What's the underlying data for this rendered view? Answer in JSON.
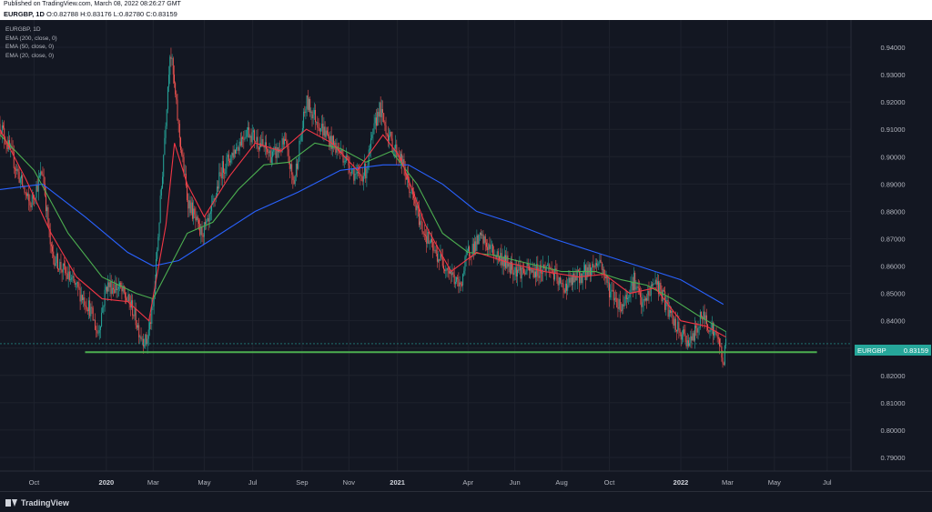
{
  "header": {
    "published": "Published on TradingView.com, March 08, 2022 08:26:27 GMT",
    "symbol": "EURGBP, 1D",
    "ohlc": "O:0.82788 H:0.83176 L:0.82780 C:0.83159"
  },
  "legend": {
    "symbol": "EURGBP, 1D",
    "items": [
      "EMA (200, close, 0)",
      "EMA (50, close, 0)",
      "EMA (20, close, 0)"
    ]
  },
  "price_tag": {
    "symbol": "EURGBP",
    "value": "0.83159"
  },
  "brand": "TradingView",
  "colors": {
    "background": "#131722",
    "up": "#26a69a",
    "down": "#ef5350",
    "ema200": "#2962ff",
    "ema50": "#4caf50",
    "ema20": "#f23645",
    "support": "#4caf50"
  },
  "chart_data": {
    "type": "line",
    "ylim": [
      0.785,
      0.95
    ],
    "yticks": [
      "0.94000",
      "0.93000",
      "0.92000",
      "0.91000",
      "0.90000",
      "0.89000",
      "0.88000",
      "0.87000",
      "0.86000",
      "0.85000",
      "0.84000",
      "0.83000",
      "0.82000",
      "0.81000",
      "0.80000",
      "0.79000"
    ],
    "xticks": [
      {
        "label": "Oct",
        "t": 0.04,
        "year": false
      },
      {
        "label": "2020",
        "t": 0.125,
        "year": true
      },
      {
        "label": "Mar",
        "t": 0.18,
        "year": false
      },
      {
        "label": "May",
        "t": 0.24,
        "year": false
      },
      {
        "label": "Jul",
        "t": 0.297,
        "year": false
      },
      {
        "label": "Sep",
        "t": 0.355,
        "year": false
      },
      {
        "label": "Nov",
        "t": 0.41,
        "year": false
      },
      {
        "label": "2021",
        "t": 0.467,
        "year": true
      },
      {
        "label": "Apr",
        "t": 0.55,
        "year": false
      },
      {
        "label": "Jun",
        "t": 0.605,
        "year": false
      },
      {
        "label": "Aug",
        "t": 0.66,
        "year": false
      },
      {
        "label": "Oct",
        "t": 0.716,
        "year": false
      },
      {
        "label": "2022",
        "t": 0.8,
        "year": true
      },
      {
        "label": "Mar",
        "t": 0.855,
        "year": false
      },
      {
        "label": "May",
        "t": 0.91,
        "year": false
      },
      {
        "label": "Jul",
        "t": 0.972,
        "year": false
      }
    ],
    "price_path": [
      [
        0.0,
        0.912
      ],
      [
        0.02,
        0.895
      ],
      [
        0.035,
        0.882
      ],
      [
        0.05,
        0.895
      ],
      [
        0.06,
        0.865
      ],
      [
        0.075,
        0.858
      ],
      [
        0.09,
        0.852
      ],
      [
        0.105,
        0.845
      ],
      [
        0.115,
        0.835
      ],
      [
        0.125,
        0.853
      ],
      [
        0.14,
        0.852
      ],
      [
        0.155,
        0.845
      ],
      [
        0.165,
        0.835
      ],
      [
        0.172,
        0.832
      ],
      [
        0.18,
        0.845
      ],
      [
        0.19,
        0.89
      ],
      [
        0.2,
        0.94
      ],
      [
        0.21,
        0.91
      ],
      [
        0.22,
        0.885
      ],
      [
        0.235,
        0.872
      ],
      [
        0.245,
        0.875
      ],
      [
        0.26,
        0.895
      ],
      [
        0.275,
        0.902
      ],
      [
        0.29,
        0.91
      ],
      [
        0.305,
        0.905
      ],
      [
        0.32,
        0.9
      ],
      [
        0.335,
        0.905
      ],
      [
        0.345,
        0.89
      ],
      [
        0.36,
        0.92
      ],
      [
        0.375,
        0.912
      ],
      [
        0.39,
        0.905
      ],
      [
        0.405,
        0.9
      ],
      [
        0.42,
        0.892
      ],
      [
        0.43,
        0.895
      ],
      [
        0.445,
        0.918
      ],
      [
        0.46,
        0.905
      ],
      [
        0.47,
        0.9
      ],
      [
        0.48,
        0.89
      ],
      [
        0.495,
        0.875
      ],
      [
        0.51,
        0.865
      ],
      [
        0.525,
        0.86
      ],
      [
        0.54,
        0.852
      ],
      [
        0.55,
        0.865
      ],
      [
        0.565,
        0.87
      ],
      [
        0.58,
        0.865
      ],
      [
        0.6,
        0.86
      ],
      [
        0.615,
        0.858
      ],
      [
        0.63,
        0.858
      ],
      [
        0.645,
        0.86
      ],
      [
        0.66,
        0.852
      ],
      [
        0.675,
        0.855
      ],
      [
        0.69,
        0.858
      ],
      [
        0.705,
        0.862
      ],
      [
        0.715,
        0.852
      ],
      [
        0.73,
        0.845
      ],
      [
        0.745,
        0.855
      ],
      [
        0.755,
        0.845
      ],
      [
        0.77,
        0.855
      ],
      [
        0.78,
        0.848
      ],
      [
        0.79,
        0.84
      ],
      [
        0.8,
        0.835
      ],
      [
        0.812,
        0.832
      ],
      [
        0.825,
        0.842
      ],
      [
        0.835,
        0.838
      ],
      [
        0.845,
        0.832
      ],
      [
        0.85,
        0.825
      ],
      [
        0.853,
        0.8316
      ]
    ],
    "ema20": [
      [
        0.0,
        0.91
      ],
      [
        0.03,
        0.892
      ],
      [
        0.06,
        0.872
      ],
      [
        0.09,
        0.856
      ],
      [
        0.12,
        0.848
      ],
      [
        0.15,
        0.847
      ],
      [
        0.175,
        0.84
      ],
      [
        0.195,
        0.875
      ],
      [
        0.205,
        0.905
      ],
      [
        0.22,
        0.89
      ],
      [
        0.24,
        0.878
      ],
      [
        0.27,
        0.893
      ],
      [
        0.3,
        0.905
      ],
      [
        0.33,
        0.902
      ],
      [
        0.36,
        0.91
      ],
      [
        0.39,
        0.905
      ],
      [
        0.42,
        0.895
      ],
      [
        0.45,
        0.908
      ],
      [
        0.47,
        0.9
      ],
      [
        0.5,
        0.875
      ],
      [
        0.53,
        0.858
      ],
      [
        0.56,
        0.865
      ],
      [
        0.6,
        0.861
      ],
      [
        0.64,
        0.858
      ],
      [
        0.68,
        0.856
      ],
      [
        0.71,
        0.857
      ],
      [
        0.74,
        0.85
      ],
      [
        0.77,
        0.852
      ],
      [
        0.8,
        0.84
      ],
      [
        0.83,
        0.838
      ],
      [
        0.853,
        0.834
      ]
    ],
    "ema50": [
      [
        0.0,
        0.908
      ],
      [
        0.04,
        0.895
      ],
      [
        0.08,
        0.872
      ],
      [
        0.12,
        0.856
      ],
      [
        0.16,
        0.85
      ],
      [
        0.18,
        0.848
      ],
      [
        0.2,
        0.86
      ],
      [
        0.22,
        0.872
      ],
      [
        0.25,
        0.876
      ],
      [
        0.28,
        0.888
      ],
      [
        0.31,
        0.897
      ],
      [
        0.34,
        0.898
      ],
      [
        0.37,
        0.905
      ],
      [
        0.4,
        0.903
      ],
      [
        0.43,
        0.898
      ],
      [
        0.46,
        0.902
      ],
      [
        0.49,
        0.89
      ],
      [
        0.52,
        0.872
      ],
      [
        0.55,
        0.865
      ],
      [
        0.58,
        0.864
      ],
      [
        0.62,
        0.861
      ],
      [
        0.66,
        0.858
      ],
      [
        0.7,
        0.858
      ],
      [
        0.73,
        0.855
      ],
      [
        0.76,
        0.853
      ],
      [
        0.79,
        0.848
      ],
      [
        0.82,
        0.842
      ],
      [
        0.853,
        0.836
      ]
    ],
    "ema200": [
      [
        0.0,
        0.888
      ],
      [
        0.05,
        0.89
      ],
      [
        0.1,
        0.878
      ],
      [
        0.15,
        0.865
      ],
      [
        0.18,
        0.86
      ],
      [
        0.21,
        0.862
      ],
      [
        0.25,
        0.87
      ],
      [
        0.3,
        0.88
      ],
      [
        0.35,
        0.887
      ],
      [
        0.4,
        0.895
      ],
      [
        0.45,
        0.897
      ],
      [
        0.48,
        0.897
      ],
      [
        0.52,
        0.89
      ],
      [
        0.56,
        0.88
      ],
      [
        0.6,
        0.876
      ],
      [
        0.65,
        0.87
      ],
      [
        0.7,
        0.865
      ],
      [
        0.75,
        0.86
      ],
      [
        0.8,
        0.855
      ],
      [
        0.85,
        0.846
      ]
    ],
    "support_level": 0.8285,
    "support_range": [
      0.1,
      0.96
    ],
    "current_price": 0.83159
  }
}
